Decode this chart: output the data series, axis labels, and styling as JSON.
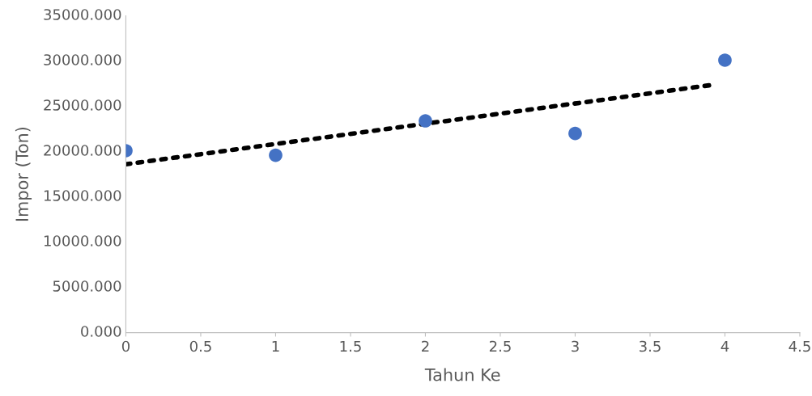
{
  "chart_data": {
    "type": "scatter",
    "xlabel": "Tahun Ke",
    "ylabel": "Impor (Ton)",
    "xlim": [
      0,
      4.5
    ],
    "xticks": [
      0,
      0.5,
      1,
      1.5,
      2,
      2.5,
      3,
      3.5,
      4,
      4.5
    ],
    "ylim": [
      0,
      35000
    ],
    "yticks": [
      {
        "value": 0,
        "label": "0.000"
      },
      {
        "value": 5000,
        "label": "5000.000"
      },
      {
        "value": 10000,
        "label": "10000.000"
      },
      {
        "value": 15000,
        "label": "15000.000"
      },
      {
        "value": 20000,
        "label": "20000.000"
      },
      {
        "value": 25000,
        "label": "25000.000"
      },
      {
        "value": 30000,
        "label": "30000.000"
      },
      {
        "value": 35000,
        "label": "35000.000"
      }
    ],
    "series": [
      {
        "color": "#4472c4",
        "marker": "circle",
        "x": [
          0,
          1,
          2,
          3,
          4
        ],
        "values": [
          20100,
          19600,
          23400,
          22000,
          30100
        ]
      },
      {
        "type": "line",
        "color": "#000000",
        "marker": "none",
        "line_style": "dotted",
        "x": [
          0,
          3.93
        ],
        "values": [
          18600,
          27400
        ]
      }
    ]
  }
}
